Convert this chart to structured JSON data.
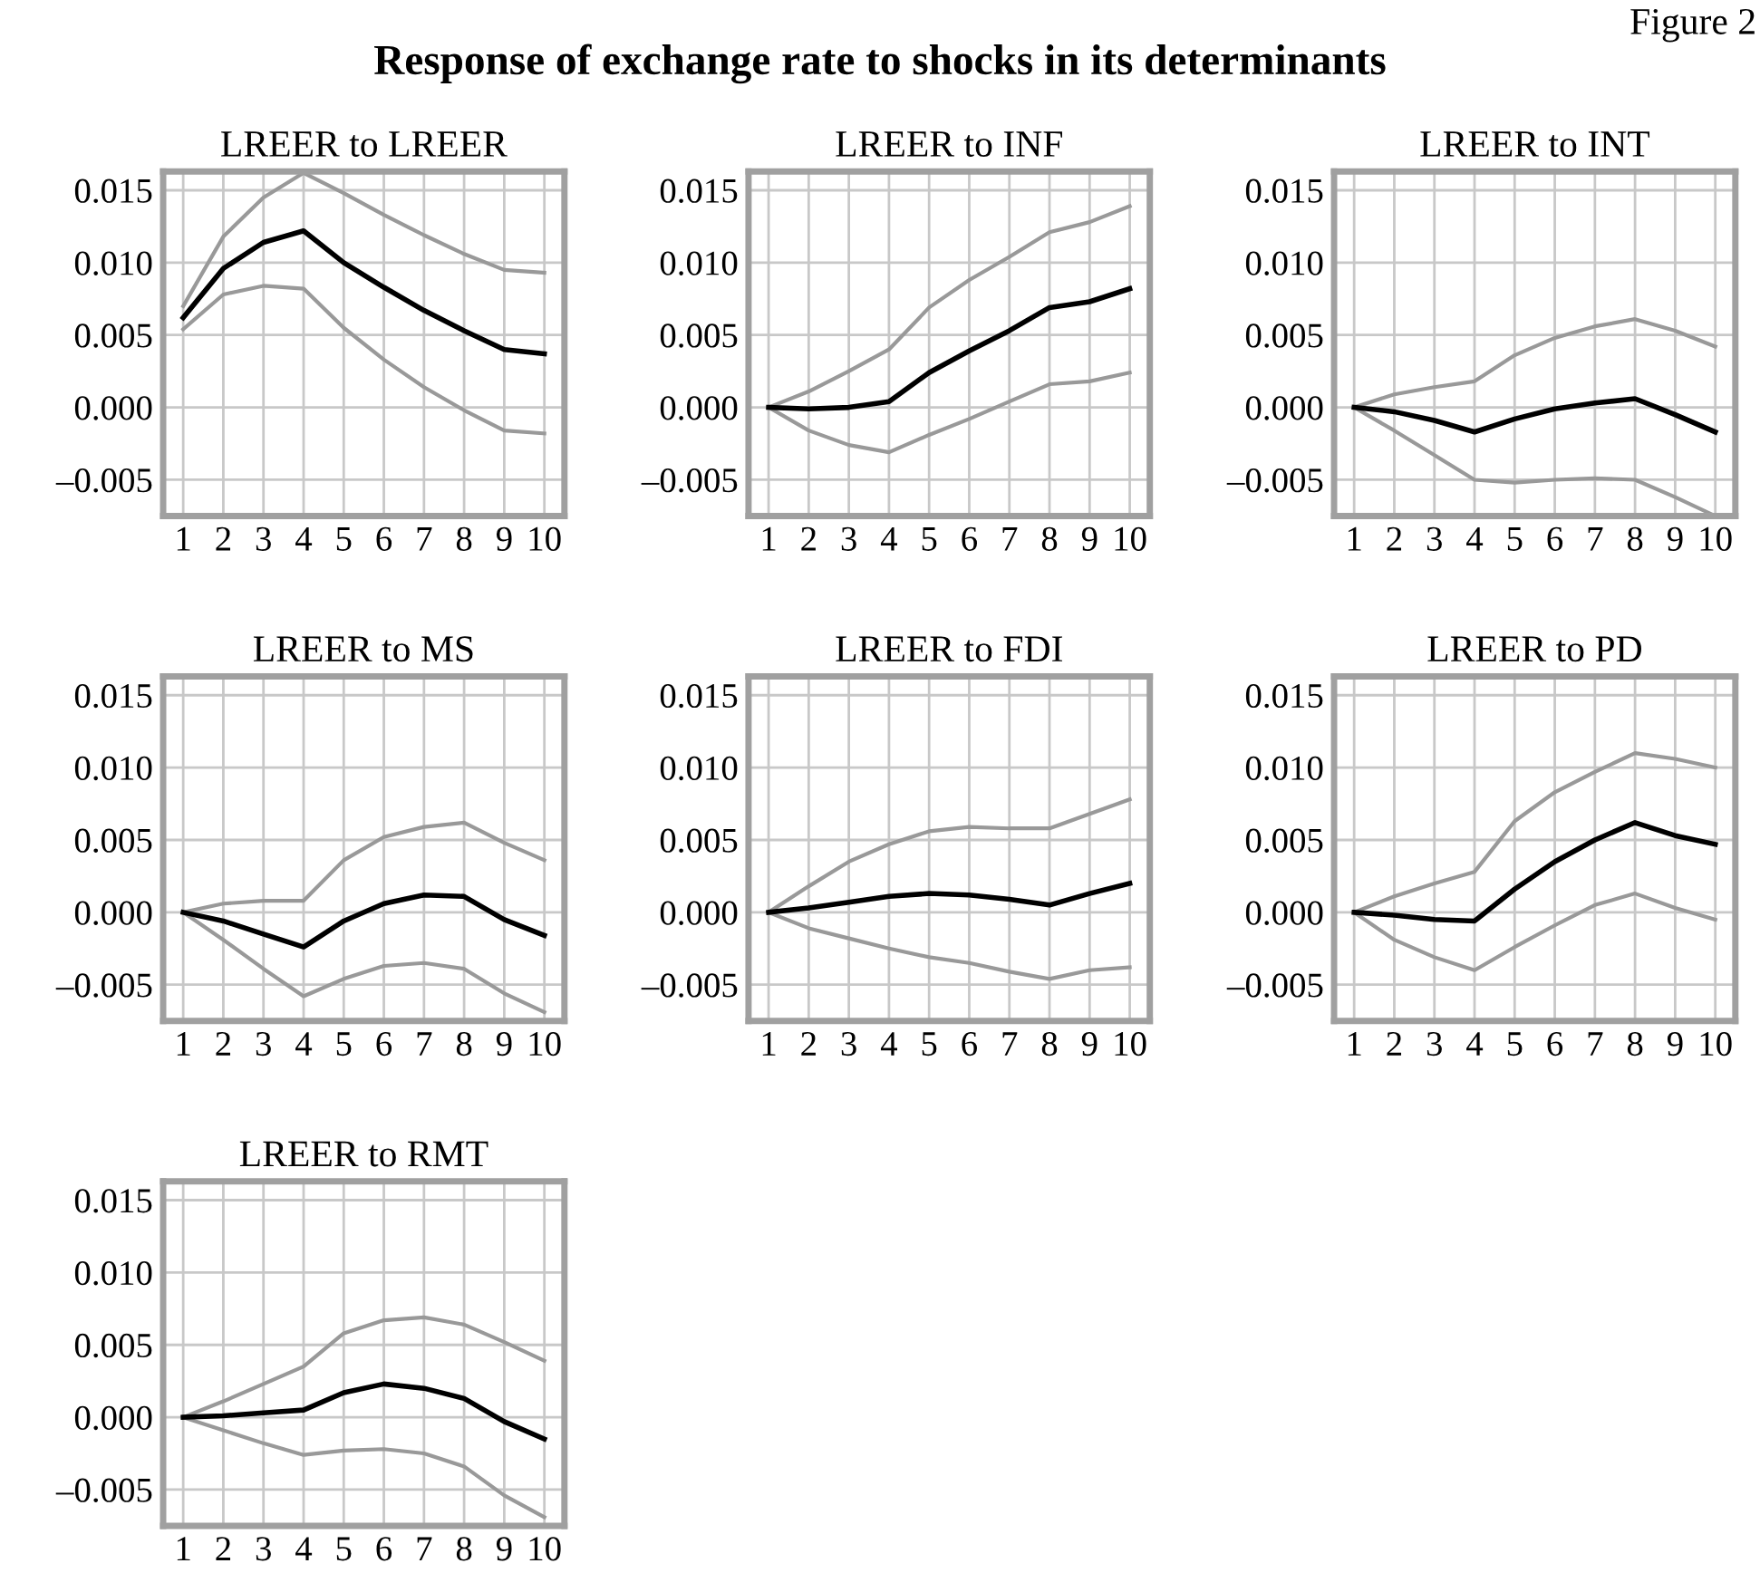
{
  "chart_data": [
    {
      "type": "line",
      "title": "LREER to LREER",
      "annotations": [
        "Figure 2",
        "Response of exchange rate to shocks in its determinants"
      ],
      "x": [
        1,
        2,
        3,
        4,
        5,
        6,
        7,
        8,
        9,
        10
      ],
      "xlim": [
        0.5,
        10.5
      ],
      "xticks": [
        1,
        2,
        3,
        4,
        5,
        6,
        7,
        8,
        9,
        10
      ],
      "ylim": [
        -0.0075,
        0.0163
      ],
      "yticks": [
        {
          "value": -0.005,
          "label": "–0.005"
        },
        {
          "value": 0,
          "label": "0.000"
        },
        {
          "value": 0.005,
          "label": "0.005"
        },
        {
          "value": 0.01,
          "label": "0.010"
        },
        {
          "value": 0.015,
          "label": "0.015"
        }
      ],
      "grid": true,
      "line_style": "solid",
      "series": [
        {
          "color": "#999999",
          "values": [
            0.007,
            0.0118,
            0.0145,
            0.0162,
            0.0148,
            0.0133,
            0.0119,
            0.0106,
            0.0095,
            0.0093
          ]
        },
        {
          "color": "#999999",
          "values": [
            0.0054,
            0.0078,
            0.0084,
            0.0082,
            0.0055,
            0.0033,
            0.0014,
            -0.0002,
            -0.0016,
            -0.0018
          ]
        },
        {
          "color": "#000000",
          "values": [
            0.0062,
            0.0096,
            0.0114,
            0.0122,
            0.01,
            0.0083,
            0.0067,
            0.0053,
            0.004,
            0.0037
          ]
        }
      ]
    },
    {
      "type": "line",
      "title": "LREER to INF",
      "x": [
        1,
        2,
        3,
        4,
        5,
        6,
        7,
        8,
        9,
        10
      ],
      "xlim": [
        0.5,
        10.5
      ],
      "xticks": [
        1,
        2,
        3,
        4,
        5,
        6,
        7,
        8,
        9,
        10
      ],
      "ylim": [
        -0.0075,
        0.0163
      ],
      "yticks": [
        {
          "value": -0.005,
          "label": "–0.005"
        },
        {
          "value": 0,
          "label": "0.000"
        },
        {
          "value": 0.005,
          "label": "0.005"
        },
        {
          "value": 0.01,
          "label": "0.010"
        },
        {
          "value": 0.015,
          "label": "0.015"
        }
      ],
      "grid": true,
      "line_style": "solid",
      "series": [
        {
          "color": "#999999",
          "values": [
            0,
            0.0011,
            0.0025,
            0.004,
            0.0069,
            0.0088,
            0.0104,
            0.0121,
            0.0128,
            0.0139
          ]
        },
        {
          "color": "#999999",
          "values": [
            0,
            -0.0016,
            -0.0026,
            -0.0031,
            -0.0019,
            -0.0008,
            0.0004,
            0.0016,
            0.0018,
            0.0024
          ]
        },
        {
          "color": "#000000",
          "values": [
            0,
            -0.0001,
            0,
            0.0004,
            0.0024,
            0.0039,
            0.0053,
            0.0069,
            0.0073,
            0.0082
          ]
        }
      ]
    },
    {
      "type": "line",
      "title": "LREER to INT",
      "x": [
        1,
        2,
        3,
        4,
        5,
        6,
        7,
        8,
        9,
        10
      ],
      "xlim": [
        0.5,
        10.5
      ],
      "xticks": [
        1,
        2,
        3,
        4,
        5,
        6,
        7,
        8,
        9,
        10
      ],
      "ylim": [
        -0.0075,
        0.0163
      ],
      "yticks": [
        {
          "value": -0.005,
          "label": "–0.005"
        },
        {
          "value": 0,
          "label": "0.000"
        },
        {
          "value": 0.005,
          "label": "0.005"
        },
        {
          "value": 0.01,
          "label": "0.010"
        },
        {
          "value": 0.015,
          "label": "0.015"
        }
      ],
      "grid": true,
      "line_style": "solid",
      "series": [
        {
          "color": "#999999",
          "values": [
            0,
            0.0009,
            0.0014,
            0.0018,
            0.0036,
            0.0048,
            0.0056,
            0.0061,
            0.0053,
            0.0042
          ]
        },
        {
          "color": "#999999",
          "values": [
            0,
            -0.0016,
            -0.0033,
            -0.005,
            -0.0052,
            -0.005,
            -0.0049,
            -0.005,
            -0.0062,
            -0.0075
          ]
        },
        {
          "color": "#000000",
          "values": [
            0,
            -0.0003,
            -0.0009,
            -0.0017,
            -0.0008,
            -0.0001,
            0.0003,
            0.0006,
            -0.0005,
            -0.0017
          ]
        }
      ]
    },
    {
      "type": "line",
      "title": "LREER to MS",
      "x": [
        1,
        2,
        3,
        4,
        5,
        6,
        7,
        8,
        9,
        10
      ],
      "xlim": [
        0.5,
        10.5
      ],
      "xticks": [
        1,
        2,
        3,
        4,
        5,
        6,
        7,
        8,
        9,
        10
      ],
      "ylim": [
        -0.0075,
        0.0163
      ],
      "yticks": [
        {
          "value": -0.005,
          "label": "–0.005"
        },
        {
          "value": 0,
          "label": "0.000"
        },
        {
          "value": 0.005,
          "label": "0.005"
        },
        {
          "value": 0.01,
          "label": "0.010"
        },
        {
          "value": 0.015,
          "label": "0.015"
        }
      ],
      "grid": true,
      "line_style": "solid",
      "series": [
        {
          "color": "#999999",
          "values": [
            0,
            0.0006,
            0.0008,
            0.0008,
            0.0036,
            0.0052,
            0.0059,
            0.0062,
            0.0048,
            0.0036
          ]
        },
        {
          "color": "#999999",
          "values": [
            0,
            -0.0019,
            -0.0039,
            -0.0058,
            -0.0046,
            -0.0037,
            -0.0035,
            -0.0039,
            -0.0056,
            -0.0069
          ]
        },
        {
          "color": "#000000",
          "values": [
            0,
            -0.0006,
            -0.0015,
            -0.0024,
            -0.0006,
            0.0006,
            0.0012,
            0.0011,
            -0.0005,
            -0.0016
          ]
        }
      ]
    },
    {
      "type": "line",
      "title": "LREER to FDI",
      "x": [
        1,
        2,
        3,
        4,
        5,
        6,
        7,
        8,
        9,
        10
      ],
      "xlim": [
        0.5,
        10.5
      ],
      "xticks": [
        1,
        2,
        3,
        4,
        5,
        6,
        7,
        8,
        9,
        10
      ],
      "ylim": [
        -0.0075,
        0.0163
      ],
      "yticks": [
        {
          "value": -0.005,
          "label": "–0.005"
        },
        {
          "value": 0,
          "label": "0.000"
        },
        {
          "value": 0.005,
          "label": "0.005"
        },
        {
          "value": 0.01,
          "label": "0.010"
        },
        {
          "value": 0.015,
          "label": "0.015"
        }
      ],
      "grid": true,
      "line_style": "solid",
      "series": [
        {
          "color": "#999999",
          "values": [
            0,
            0.0018,
            0.0035,
            0.0047,
            0.0056,
            0.0059,
            0.0058,
            0.0058,
            0.0068,
            0.0078
          ]
        },
        {
          "color": "#999999",
          "values": [
            0,
            -0.0011,
            -0.0018,
            -0.0025,
            -0.0031,
            -0.0035,
            -0.0041,
            -0.0046,
            -0.004,
            -0.0038
          ]
        },
        {
          "color": "#000000",
          "values": [
            0,
            0.0003,
            0.0007,
            0.0011,
            0.0013,
            0.0012,
            0.0009,
            0.0005,
            0.0013,
            0.002
          ]
        }
      ]
    },
    {
      "type": "line",
      "title": "LREER to PD",
      "x": [
        1,
        2,
        3,
        4,
        5,
        6,
        7,
        8,
        9,
        10
      ],
      "xlim": [
        0.5,
        10.5
      ],
      "xticks": [
        1,
        2,
        3,
        4,
        5,
        6,
        7,
        8,
        9,
        10
      ],
      "ylim": [
        -0.0075,
        0.0163
      ],
      "yticks": [
        {
          "value": -0.005,
          "label": "–0.005"
        },
        {
          "value": 0,
          "label": "0.000"
        },
        {
          "value": 0.005,
          "label": "0.005"
        },
        {
          "value": 0.01,
          "label": "0.010"
        },
        {
          "value": 0.015,
          "label": "0.015"
        }
      ],
      "grid": true,
      "line_style": "solid",
      "series": [
        {
          "color": "#999999",
          "values": [
            0,
            0.0011,
            0.002,
            0.0028,
            0.0063,
            0.0083,
            0.0097,
            0.011,
            0.0106,
            0.01
          ]
        },
        {
          "color": "#999999",
          "values": [
            0,
            -0.0019,
            -0.0031,
            -0.004,
            -0.0024,
            -0.0009,
            0.0005,
            0.0013,
            0.0003,
            -0.0005
          ]
        },
        {
          "color": "#000000",
          "values": [
            0,
            -0.0002,
            -0.0005,
            -0.0006,
            0.0016,
            0.0035,
            0.005,
            0.0062,
            0.0053,
            0.0047
          ]
        }
      ]
    },
    {
      "type": "line",
      "title": "LREER to RMT",
      "x": [
        1,
        2,
        3,
        4,
        5,
        6,
        7,
        8,
        9,
        10
      ],
      "xlim": [
        0.5,
        10.5
      ],
      "xticks": [
        1,
        2,
        3,
        4,
        5,
        6,
        7,
        8,
        9,
        10
      ],
      "ylim": [
        -0.0075,
        0.0163
      ],
      "yticks": [
        {
          "value": -0.005,
          "label": "–0.005"
        },
        {
          "value": 0,
          "label": "0.000"
        },
        {
          "value": 0.005,
          "label": "0.005"
        },
        {
          "value": 0.01,
          "label": "0.010"
        },
        {
          "value": 0.015,
          "label": "0.015"
        }
      ],
      "grid": true,
      "line_style": "solid",
      "series": [
        {
          "color": "#999999",
          "values": [
            0,
            0.0011,
            0.0023,
            0.0035,
            0.0058,
            0.0067,
            0.0069,
            0.0064,
            0.0052,
            0.0039
          ]
        },
        {
          "color": "#999999",
          "values": [
            0,
            -0.0009,
            -0.0018,
            -0.0026,
            -0.0023,
            -0.0022,
            -0.0025,
            -0.0034,
            -0.0054,
            -0.0069
          ]
        },
        {
          "color": "#000000",
          "values": [
            0,
            0.0001,
            0.0003,
            0.0005,
            0.0017,
            0.0023,
            0.002,
            0.0013,
            -0.0003,
            -0.0015
          ]
        }
      ]
    }
  ]
}
